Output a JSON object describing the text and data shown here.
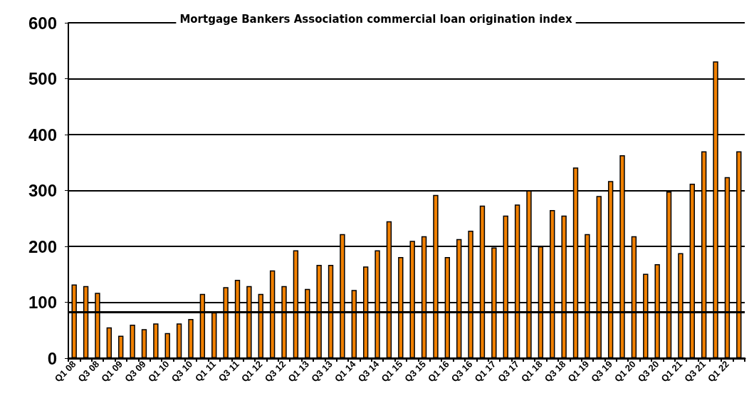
{
  "chart_data": {
    "type": "bar",
    "title": "Mortgage Bankers Association commercial loan origination index",
    "categories": [
      "Q1 08",
      null,
      "Q3 08",
      null,
      "Q1 09",
      null,
      "Q3 09",
      null,
      "Q1 10",
      null,
      "Q3 10",
      null,
      "Q1 11",
      null,
      "Q3 11",
      null,
      "Q1 12",
      null,
      "Q3 12",
      null,
      "Q1 13",
      null,
      "Q3 13",
      null,
      "Q1 14",
      null,
      "Q3 14",
      null,
      "Q1 15",
      null,
      "Q3 15",
      null,
      "Q1 16",
      null,
      "Q3 16",
      null,
      "Q1 17",
      null,
      "Q3 17",
      null,
      "Q1 18",
      null,
      "Q3 18",
      null,
      "Q1 19",
      null,
      "Q3 19",
      null,
      "Q1 20",
      null,
      "Q3 20",
      null,
      "Q1 21",
      null,
      "Q3 21",
      null,
      "Q1 22",
      null
    ],
    "values": [
      132,
      129,
      117,
      55,
      40,
      60,
      52,
      62,
      45,
      62,
      70,
      115,
      82,
      127,
      140,
      129,
      115,
      157,
      129,
      193,
      124,
      167,
      167,
      222,
      122,
      164,
      193,
      245,
      181,
      210,
      218,
      292,
      181,
      213,
      228,
      273,
      198,
      255,
      275,
      300,
      200,
      265,
      255,
      341,
      222,
      290,
      317,
      363,
      218,
      151,
      168,
      298,
      188,
      312,
      370,
      531,
      324,
      370
    ],
    "color": "#f08000",
    "ylim": [
      0,
      600
    ],
    "yticks": [
      0,
      100,
      200,
      300,
      400,
      500,
      600
    ],
    "grid": "y",
    "ref_lines": [
      {
        "axis": "y",
        "value": 83,
        "color": "#000000"
      }
    ]
  }
}
